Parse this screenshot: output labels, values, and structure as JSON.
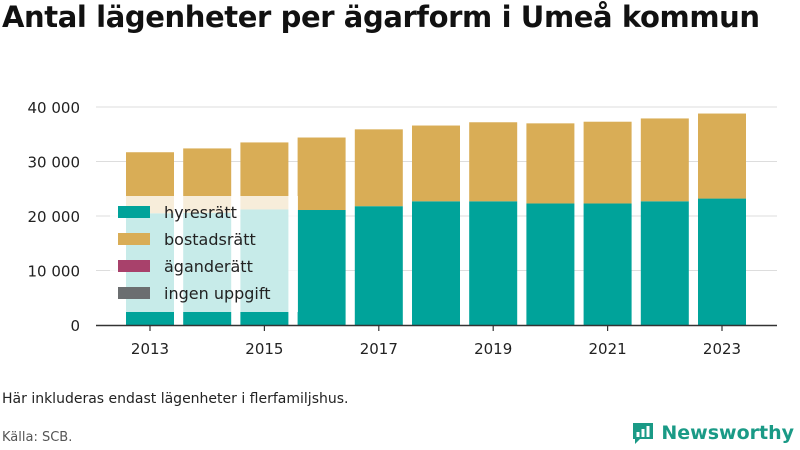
{
  "title": "Antal lägenheter per ägarform i Umeå kommun",
  "note": "Här inkluderas endast lägenheter i flerfamiljshus.",
  "source": "Källa: SCB.",
  "brand": "Newsworthy",
  "colors": {
    "hyresratt": "#00a39a",
    "bostadsratt": "#d9ad56",
    "aganderatt": "#a8416b",
    "ingen_uppgift": "#6b6e70",
    "brand": "#1a9a86"
  },
  "chart_data": {
    "type": "bar",
    "stacked": true,
    "title": "Antal lägenheter per ägarform i Umeå kommun",
    "xlabel": "",
    "ylabel": "",
    "ylim": [
      0,
      40000
    ],
    "yticks": [
      0,
      10000,
      20000,
      30000,
      40000
    ],
    "ytick_labels": [
      "0",
      "10 000",
      "20 000",
      "30 000",
      "40 000"
    ],
    "grid": true,
    "legend_position": "inside-left",
    "categories": [
      2013,
      2014,
      2015,
      2016,
      2017,
      2018,
      2019,
      2020,
      2021,
      2022,
      2023
    ],
    "xtick_labels": [
      "2013",
      "2015",
      "2017",
      "2019",
      "2021",
      "2023"
    ],
    "series": [
      {
        "name": "hyresrätt",
        "key": "hyresratt",
        "values": [
          20500,
          20600,
          21200,
          21100,
          21800,
          22700,
          22700,
          22300,
          22300,
          22700,
          23200
        ]
      },
      {
        "name": "bostadsrätt",
        "key": "bostadsratt",
        "values": [
          11200,
          11800,
          12300,
          13300,
          14100,
          13900,
          14500,
          14700,
          15000,
          15200,
          15600
        ]
      },
      {
        "name": "äganderätt",
        "key": "aganderatt",
        "values": [
          0,
          0,
          0,
          0,
          0,
          0,
          0,
          0,
          0,
          0,
          0
        ]
      },
      {
        "name": "ingen uppgift",
        "key": "ingen_uppgift",
        "values": [
          0,
          0,
          0,
          0,
          0,
          0,
          0,
          0,
          0,
          0,
          0
        ]
      }
    ]
  }
}
